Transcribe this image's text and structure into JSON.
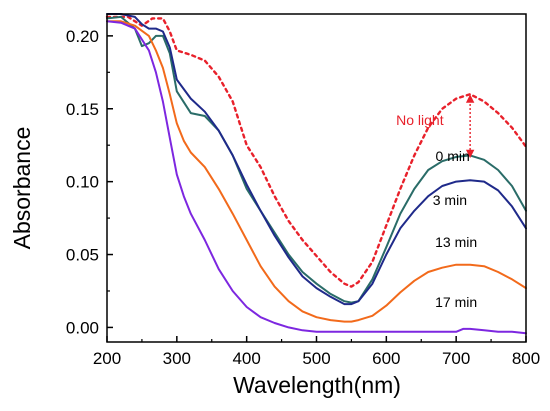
{
  "chart_data": {
    "type": "line",
    "xlabel": "Wavelength(nm)",
    "ylabel": "Absorbance",
    "xlim": [
      200,
      800
    ],
    "ylim": [
      -0.01,
      0.215
    ],
    "xticks": [
      200,
      300,
      400,
      500,
      600,
      700,
      800
    ],
    "yticks": [
      0.0,
      0.05,
      0.1,
      0.15,
      0.2
    ],
    "xtick_labels": [
      "200",
      "300",
      "400",
      "500",
      "600",
      "700",
      "800"
    ],
    "ytick_labels": [
      "0.00",
      "0.05",
      "0.10",
      "0.15",
      "0.20"
    ],
    "grid": false,
    "series": [
      {
        "label": "No light",
        "color": "#e8212b",
        "style": "dotted",
        "x": [
          200,
          230,
          250,
          265,
          280,
          290,
          300,
          320,
          340,
          360,
          380,
          400,
          420,
          440,
          460,
          480,
          500,
          520,
          540,
          550,
          560,
          580,
          600,
          620,
          640,
          660,
          680,
          700,
          720,
          740,
          760,
          780,
          800
        ],
        "y": [
          0.213,
          0.213,
          0.207,
          0.212,
          0.212,
          0.203,
          0.19,
          0.187,
          0.183,
          0.172,
          0.155,
          0.125,
          0.11,
          0.09,
          0.073,
          0.06,
          0.049,
          0.038,
          0.03,
          0.028,
          0.031,
          0.045,
          0.07,
          0.095,
          0.118,
          0.137,
          0.15,
          0.157,
          0.16,
          0.155,
          0.147,
          0.137,
          0.124
        ]
      },
      {
        "label": "0 min",
        "color": "#2a6c68",
        "style": "solid",
        "x": [
          200,
          220,
          240,
          250,
          260,
          270,
          280,
          290,
          300,
          320,
          340,
          360,
          380,
          400,
          420,
          440,
          460,
          480,
          500,
          520,
          540,
          550,
          560,
          580,
          600,
          620,
          640,
          660,
          680,
          700,
          720,
          740,
          760,
          780,
          800
        ],
        "y": [
          0.212,
          0.213,
          0.205,
          0.193,
          0.195,
          0.2,
          0.2,
          0.188,
          0.162,
          0.147,
          0.145,
          0.135,
          0.118,
          0.095,
          0.08,
          0.065,
          0.05,
          0.038,
          0.03,
          0.023,
          0.018,
          0.017,
          0.018,
          0.033,
          0.055,
          0.078,
          0.095,
          0.108,
          0.114,
          0.117,
          0.118,
          0.115,
          0.108,
          0.097,
          0.08
        ]
      },
      {
        "label": "3 min",
        "color": "#1f2a8a",
        "style": "solid",
        "x": [
          200,
          220,
          240,
          250,
          260,
          270,
          280,
          290,
          300,
          320,
          340,
          360,
          380,
          400,
          420,
          440,
          460,
          480,
          500,
          520,
          540,
          550,
          560,
          580,
          600,
          620,
          640,
          660,
          680,
          700,
          720,
          740,
          760,
          780,
          800
        ],
        "y": [
          0.215,
          0.215,
          0.213,
          0.208,
          0.205,
          0.205,
          0.203,
          0.192,
          0.17,
          0.157,
          0.148,
          0.135,
          0.118,
          0.098,
          0.08,
          0.063,
          0.048,
          0.035,
          0.027,
          0.021,
          0.016,
          0.016,
          0.018,
          0.03,
          0.05,
          0.068,
          0.08,
          0.09,
          0.097,
          0.1,
          0.101,
          0.1,
          0.094,
          0.083,
          0.068
        ]
      },
      {
        "label": "13 min",
        "color": "#f26a1b",
        "style": "solid",
        "x": [
          200,
          220,
          240,
          260,
          270,
          280,
          290,
          300,
          310,
          320,
          340,
          360,
          380,
          400,
          420,
          440,
          460,
          480,
          500,
          520,
          540,
          550,
          560,
          580,
          600,
          620,
          640,
          660,
          680,
          700,
          720,
          740,
          760,
          780,
          800
        ],
        "y": [
          0.21,
          0.21,
          0.207,
          0.2,
          0.19,
          0.178,
          0.16,
          0.14,
          0.128,
          0.12,
          0.11,
          0.095,
          0.078,
          0.06,
          0.042,
          0.028,
          0.018,
          0.011,
          0.007,
          0.005,
          0.004,
          0.004,
          0.005,
          0.008,
          0.015,
          0.024,
          0.032,
          0.038,
          0.041,
          0.043,
          0.043,
          0.042,
          0.038,
          0.033,
          0.027
        ]
      },
      {
        "label": "17 min",
        "color": "#7d27e0",
        "style": "solid",
        "x": [
          200,
          220,
          240,
          260,
          270,
          280,
          290,
          300,
          310,
          320,
          340,
          360,
          380,
          400,
          420,
          440,
          460,
          480,
          500,
          520,
          540,
          560,
          580,
          600,
          620,
          640,
          660,
          680,
          700,
          710,
          720,
          740,
          760,
          780,
          800
        ],
        "y": [
          0.21,
          0.209,
          0.205,
          0.19,
          0.175,
          0.155,
          0.13,
          0.105,
          0.09,
          0.078,
          0.06,
          0.04,
          0.025,
          0.014,
          0.007,
          0.003,
          0.0,
          -0.002,
          -0.003,
          -0.003,
          -0.003,
          -0.003,
          -0.003,
          -0.003,
          -0.003,
          -0.003,
          -0.003,
          -0.003,
          -0.003,
          -0.001,
          -0.001,
          -0.002,
          -0.003,
          -0.003,
          -0.004
        ]
      }
    ],
    "annotations": [
      {
        "text": "No light",
        "x": 648,
        "y": 0.139,
        "color": "#e8212b"
      },
      {
        "text": "0 min",
        "x": 695,
        "y": 0.114
      },
      {
        "text": "3 min",
        "x": 691,
        "y": 0.084
      },
      {
        "text": "13 min",
        "x": 700,
        "y": 0.055
      },
      {
        "text": "17 min",
        "x": 700,
        "y": 0.014
      }
    ],
    "arrow": {
      "x": 720,
      "y_from": 0.119,
      "y_to": 0.157,
      "color": "#e8212b",
      "double_headed": true
    }
  }
}
